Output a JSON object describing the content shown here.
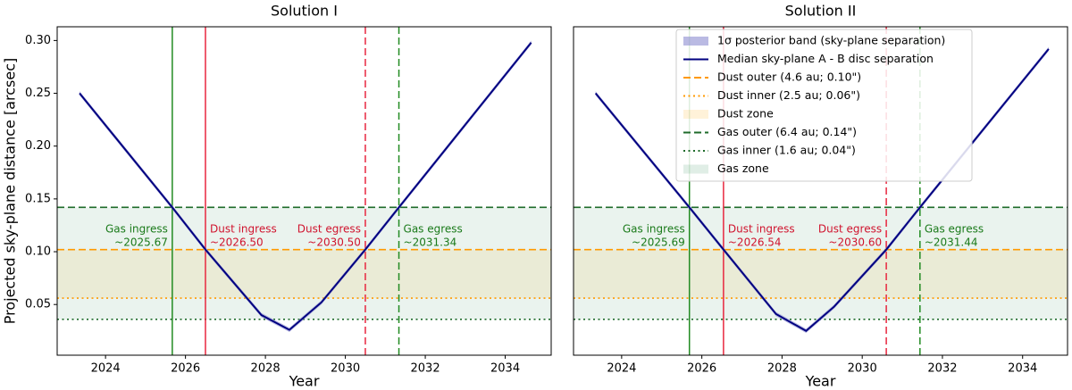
{
  "chart_data": [
    {
      "type": "line",
      "title": "Solution I",
      "xlabel": "Year",
      "ylabel": "Projected sky-plane distance [arcsec]",
      "xlim": [
        2022.79,
        2035.15
      ],
      "ylim": [
        0.002,
        0.313
      ],
      "xticks": [
        2024,
        2026,
        2028,
        2030,
        2032,
        2034
      ],
      "yticks": [
        {
          "value": 0.05,
          "label": "0.05"
        },
        {
          "value": 0.1,
          "label": "0.10"
        },
        0.15,
        {
          "value": 0.2,
          "label": "0.20"
        },
        0.25,
        {
          "value": 0.3,
          "label": "0.30"
        }
      ],
      "x": [
        2023.35,
        2025.67,
        2026.5,
        2027.9,
        2028.6,
        2029.4,
        2030.5,
        2031.34,
        2034.65
      ],
      "series": [
        {
          "type": "band",
          "color": "#8c8cd0",
          "low": [
            0.248,
            0.14,
            0.1,
            0.038,
            0.024,
            0.05,
            0.1,
            0.14,
            0.296
          ],
          "high": [
            0.252,
            0.144,
            0.104,
            0.042,
            0.028,
            0.054,
            0.104,
            0.144,
            0.3
          ]
        },
        {
          "type": "line",
          "color": "#000080",
          "values": [
            0.25,
            0.142,
            0.102,
            0.04,
            0.026,
            0.052,
            0.102,
            0.142,
            0.298
          ]
        },
        {
          "type": "hline",
          "color": "#ff9900",
          "style": "dashed",
          "value": 0.102
        },
        {
          "type": "hline",
          "color": "#ff9900",
          "style": "dotted",
          "value": 0.056
        },
        {
          "type": "zone",
          "color": "#ffa500",
          "range": [
            0.056,
            0.102
          ]
        },
        {
          "type": "hline",
          "color": "#1e6b2a",
          "style": "dashed",
          "value": 0.142
        },
        {
          "type": "hline",
          "color": "#1e6b2a",
          "style": "dotted",
          "value": 0.036
        },
        {
          "type": "zone",
          "color": "#2e8b57",
          "range": [
            0.036,
            0.142
          ]
        }
      ],
      "vlines": [
        {
          "value": 2025.67,
          "color": "#228b22",
          "style": "solid",
          "label": [
            "Gas ingress",
            "~2025.67"
          ],
          "label_color": "#1a7a1a",
          "label_side": "left"
        },
        {
          "value": 2026.5,
          "color": "#e8273f",
          "style": "solid",
          "label": [
            "Dust ingress",
            "~2026.50"
          ],
          "label_color": "#d0142e",
          "label_side": "right"
        },
        {
          "value": 2030.5,
          "color": "#e8273f",
          "style": "dashed",
          "label": [
            "Dust egress",
            "~2030.50"
          ],
          "label_color": "#d0142e",
          "label_side": "left"
        },
        {
          "value": 2031.34,
          "color": "#228b22",
          "style": "dashed",
          "label": [
            "Gas egress",
            "~2031.34"
          ],
          "label_color": "#1a7a1a",
          "label_side": "right"
        }
      ]
    },
    {
      "type": "line",
      "title": "Solution II",
      "xlabel": "Year",
      "legend": "upper center",
      "xlim": [
        2022.8,
        2035.12
      ],
      "ylim": [
        0.002,
        0.313
      ],
      "xticks": [
        2024,
        2026,
        2028,
        2030,
        2032,
        2034
      ],
      "x": [
        2023.35,
        2025.69,
        2026.54,
        2027.85,
        2028.6,
        2029.3,
        2030.6,
        2031.44,
        2034.65
      ],
      "series": [
        {
          "type": "band",
          "name": "1σ posterior band (sky-plane separation)",
          "color": "#8c8cd0",
          "low": [
            0.248,
            0.14,
            0.1,
            0.039,
            0.023,
            0.046,
            0.1,
            0.14,
            0.29
          ],
          "high": [
            0.252,
            0.144,
            0.104,
            0.043,
            0.027,
            0.05,
            0.104,
            0.144,
            0.294
          ]
        },
        {
          "type": "line",
          "name": "Median sky-plane A - B disc separation",
          "color": "#000080",
          "values": [
            0.25,
            0.142,
            0.102,
            0.041,
            0.025,
            0.048,
            0.102,
            0.142,
            0.292
          ]
        },
        {
          "type": "hline",
          "name": "Dust outer (4.6 au; 0.10\")",
          "color": "#ff9900",
          "style": "dashed",
          "value": 0.102
        },
        {
          "type": "hline",
          "name": "Dust inner (2.5 au; 0.06\")",
          "color": "#ff9900",
          "style": "dotted",
          "value": 0.056
        },
        {
          "type": "zone",
          "name": "Dust zone",
          "color": "#ffa500",
          "range": [
            0.056,
            0.102
          ]
        },
        {
          "type": "hline",
          "name": "Gas outer (6.4 au; 0.14\")",
          "color": "#1e6b2a",
          "style": "dashed",
          "value": 0.142
        },
        {
          "type": "hline",
          "name": "Gas inner (1.6 au; 0.04\")",
          "color": "#1e6b2a",
          "style": "dotted",
          "value": 0.036
        },
        {
          "type": "zone",
          "name": "Gas zone",
          "color": "#2e8b57",
          "range": [
            0.036,
            0.142
          ]
        }
      ],
      "vlines": [
        {
          "value": 2025.69,
          "color": "#228b22",
          "style": "solid",
          "label": [
            "Gas ingress",
            "~2025.69"
          ],
          "label_color": "#1a7a1a",
          "label_side": "left"
        },
        {
          "value": 2026.54,
          "color": "#e8273f",
          "style": "solid",
          "label": [
            "Dust ingress",
            "~2026.54"
          ],
          "label_color": "#d0142e",
          "label_side": "right"
        },
        {
          "value": 2030.6,
          "color": "#e8273f",
          "style": "dashed",
          "label": [
            "Dust egress",
            "~2030.60"
          ],
          "label_color": "#d0142e",
          "label_side": "left"
        },
        {
          "value": 2031.44,
          "color": "#228b22",
          "style": "dashed",
          "label": [
            "Gas egress",
            "~2031.44"
          ],
          "label_color": "#1a7a1a",
          "label_side": "right"
        }
      ]
    }
  ]
}
